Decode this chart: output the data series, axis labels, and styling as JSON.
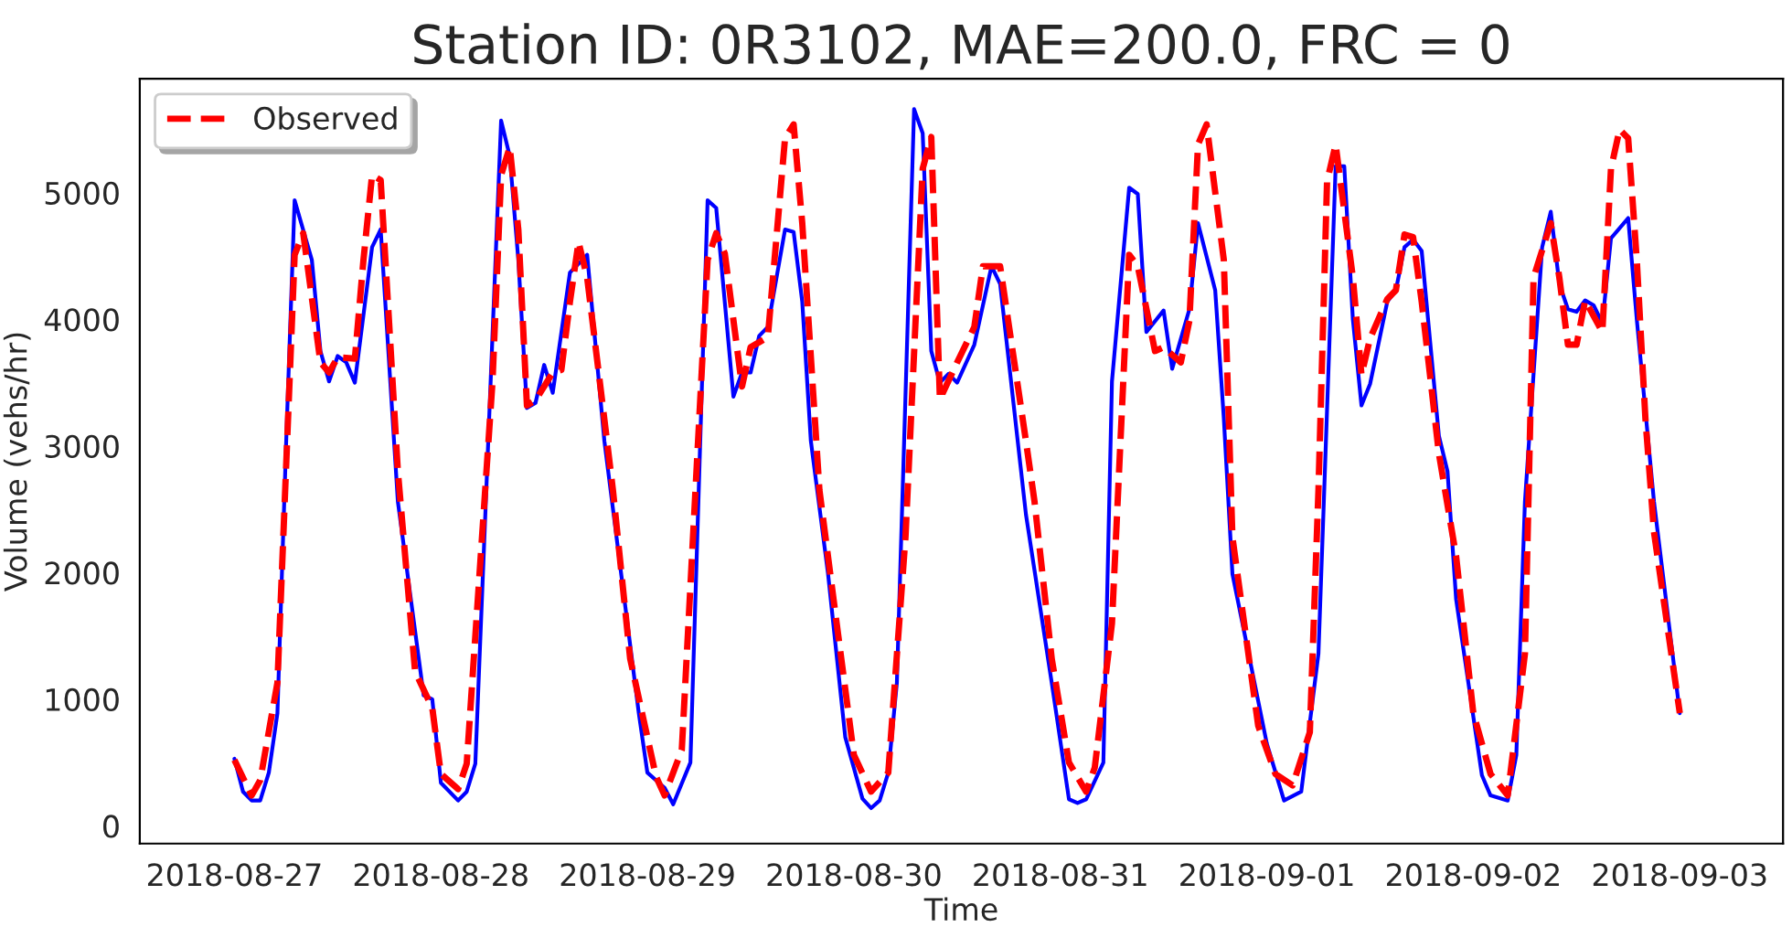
{
  "chart_data": {
    "type": "line",
    "title": "Station ID: 0R3102, MAE=200.0, FRC = 0",
    "xlabel": "Time",
    "ylabel": "Volume (vehs/hr)",
    "xlim": [
      "2018-08-26T13:00",
      "2018-09-03T12:00"
    ],
    "xticks": [
      "2018-08-27",
      "2018-08-28",
      "2018-08-29",
      "2018-08-30",
      "2018-08-31",
      "2018-09-01",
      "2018-09-02",
      "2018-09-03"
    ],
    "ylim": [
      -140,
      5900
    ],
    "yticks": [
      0,
      1000,
      2000,
      3000,
      4000,
      5000
    ],
    "grid": false,
    "legend": "top left",
    "marker": "none",
    "series": [
      {
        "color": "#0000ff",
        "line_style": "solid",
        "x": [
          "2018-08-27T00:00",
          "2018-08-27T01:00",
          "2018-08-27T02:00",
          "2018-08-27T03:00",
          "2018-08-27T04:00",
          "2018-08-27T05:00",
          "2018-08-27T06:00",
          "2018-08-27T07:00",
          "2018-08-27T09:00",
          "2018-08-27T10:00",
          "2018-08-27T11:00",
          "2018-08-27T12:00",
          "2018-08-27T13:00",
          "2018-08-27T14:00",
          "2018-08-27T16:00",
          "2018-08-27T17:00",
          "2018-08-27T19:00",
          "2018-08-27T22:00",
          "2018-08-27T23:00",
          "2018-08-28T00:00",
          "2018-08-28T02:00",
          "2018-08-28T03:00",
          "2018-08-28T04:00",
          "2018-08-28T07:00",
          "2018-08-28T08:00",
          "2018-08-28T09:00",
          "2018-08-28T10:00",
          "2018-08-28T11:00",
          "2018-08-28T12:00",
          "2018-08-28T13:00",
          "2018-08-28T15:00",
          "2018-08-28T17:00",
          "2018-08-28T19:00",
          "2018-08-28T23:00",
          "2018-08-29T00:00",
          "2018-08-29T02:00",
          "2018-08-29T03:00",
          "2018-08-29T05:00",
          "2018-08-29T07:00",
          "2018-08-29T08:00",
          "2018-08-29T10:00",
          "2018-08-29T11:00",
          "2018-08-29T12:00",
          "2018-08-29T13:00",
          "2018-08-29T14:00",
          "2018-08-29T16:00",
          "2018-08-29T17:00",
          "2018-08-29T18:00",
          "2018-08-29T19:00",
          "2018-08-29T21:00",
          "2018-08-29T23:00",
          "2018-08-30T01:00",
          "2018-08-30T02:00",
          "2018-08-30T03:00",
          "2018-08-30T04:00",
          "2018-08-30T05:00",
          "2018-08-30T07:00",
          "2018-08-30T08:00",
          "2018-08-30T09:00",
          "2018-08-30T10:00",
          "2018-08-30T11:00",
          "2018-08-30T12:00",
          "2018-08-30T14:00",
          "2018-08-30T16:00",
          "2018-08-30T17:00",
          "2018-08-30T20:00",
          "2018-08-30T23:00",
          "2018-08-31T01:00",
          "2018-08-31T02:00",
          "2018-08-31T03:00",
          "2018-08-31T05:00",
          "2018-08-31T06:00",
          "2018-08-31T08:00",
          "2018-08-31T09:00",
          "2018-08-31T10:00",
          "2018-08-31T12:00",
          "2018-08-31T13:00",
          "2018-08-31T15:00",
          "2018-08-31T16:00",
          "2018-08-31T18:00",
          "2018-08-31T19:00",
          "2018-08-31T20:00",
          "2018-09-01T00:00",
          "2018-09-01T02:00",
          "2018-09-01T04:00",
          "2018-09-01T06:00",
          "2018-09-01T08:00",
          "2018-09-01T09:00",
          "2018-09-01T10:00",
          "2018-09-01T11:00",
          "2018-09-01T12:00",
          "2018-09-01T14:00",
          "2018-09-01T15:00",
          "2018-09-01T16:00",
          "2018-09-01T17:00",
          "2018-09-01T18:00",
          "2018-09-01T20:00",
          "2018-09-01T21:00",
          "2018-09-01T22:00",
          "2018-09-02T01:00",
          "2018-09-02T02:00",
          "2018-09-02T04:00",
          "2018-09-02T05:00",
          "2018-09-02T06:00",
          "2018-09-02T08:00",
          "2018-09-02T09:00",
          "2018-09-02T10:00",
          "2018-09-02T11:00",
          "2018-09-02T12:00",
          "2018-09-02T13:00",
          "2018-09-02T14:00",
          "2018-09-02T15:00",
          "2018-09-02T16:00",
          "2018-09-02T18:00",
          "2018-09-02T19:00",
          "2018-09-02T21:00",
          "2018-09-03T00:00"
        ],
        "values": [
          530,
          270,
          200,
          200,
          420,
          890,
          3000,
          4940,
          4470,
          3750,
          3510,
          3710,
          3660,
          3500,
          4570,
          4710,
          2560,
          1030,
          1000,
          340,
          200,
          270,
          490,
          5570,
          5290,
          4470,
          3300,
          3340,
          3640,
          3420,
          4370,
          4510,
          3040,
          890,
          420,
          300,
          170,
          500,
          4940,
          4880,
          3390,
          3580,
          3580,
          3870,
          3940,
          4710,
          4690,
          4140,
          3040,
          1990,
          700,
          215,
          140,
          200,
          420,
          1130,
          5660,
          5470,
          3750,
          3500,
          3570,
          3500,
          3800,
          4420,
          4280,
          2460,
          1130,
          210,
          180,
          210,
          500,
          3510,
          5040,
          4990,
          3900,
          4070,
          3610,
          4080,
          4760,
          4230,
          3220,
          1990,
          650,
          200,
          270,
          1360,
          5210,
          5210,
          4000,
          3320,
          3490,
          4140,
          4230,
          4570,
          4630,
          4540,
          3080,
          2800,
          1790,
          400,
          240,
          200,
          560,
          2560,
          4570,
          4850,
          4280,
          4080,
          4060,
          4150,
          4110,
          3970,
          4640,
          4800,
          4000,
          2560,
          890
        ]
      },
      {
        "name": "Observed",
        "color": "#ff0000",
        "line_style": "dashed",
        "x": [
          "2018-08-27T00:00",
          "2018-08-27T02:00",
          "2018-08-27T03:00",
          "2018-08-27T05:00",
          "2018-08-27T07:00",
          "2018-08-27T08:00",
          "2018-08-27T10:00",
          "2018-08-27T11:00",
          "2018-08-27T12:00",
          "2018-08-27T14:00",
          "2018-08-27T15:00",
          "2018-08-27T16:00",
          "2018-08-27T17:00",
          "2018-08-27T19:00",
          "2018-08-27T21:00",
          "2018-08-27T23:00",
          "2018-08-28T00:00",
          "2018-08-28T02:00",
          "2018-08-28T03:00",
          "2018-08-28T06:00",
          "2018-08-28T07:00",
          "2018-08-28T08:00",
          "2018-08-28T09:00",
          "2018-08-28T10:00",
          "2018-08-28T11:00",
          "2018-08-28T13:00",
          "2018-08-28T14:00",
          "2018-08-28T15:00",
          "2018-08-28T16:00",
          "2018-08-28T17:00",
          "2018-08-28T20:00",
          "2018-08-28T22:00",
          "2018-08-29T01:00",
          "2018-08-29T02:00",
          "2018-08-29T04:00",
          "2018-08-29T07:00",
          "2018-08-29T08:00",
          "2018-08-29T09:00",
          "2018-08-29T11:00",
          "2018-08-29T12:00",
          "2018-08-29T14:00",
          "2018-08-29T16:00",
          "2018-08-29T17:00",
          "2018-08-29T18:00",
          "2018-08-29T20:00",
          "2018-08-29T22:00",
          "2018-08-30T00:00",
          "2018-08-30T02:00",
          "2018-08-30T04:00",
          "2018-08-30T06:00",
          "2018-08-30T08:00",
          "2018-08-30T09:00",
          "2018-08-30T10:00",
          "2018-08-30T12:00",
          "2018-08-30T14:00",
          "2018-08-30T15:00",
          "2018-08-30T17:00",
          "2018-08-30T20:00",
          "2018-08-30T21:00",
          "2018-08-30T23:00",
          "2018-08-31T01:00",
          "2018-08-31T03:00",
          "2018-08-31T04:00",
          "2018-08-31T06:00",
          "2018-08-31T08:00",
          "2018-08-31T09:00",
          "2018-08-31T11:00",
          "2018-08-31T12:00",
          "2018-08-31T14:00",
          "2018-08-31T15:00",
          "2018-08-31T16:00",
          "2018-08-31T17:00",
          "2018-08-31T19:00",
          "2018-08-31T20:00",
          "2018-08-31T23:00",
          "2018-09-01T01:00",
          "2018-09-01T03:00",
          "2018-09-01T05:00",
          "2018-09-01T06:00",
          "2018-09-01T07:00",
          "2018-09-01T08:00",
          "2018-09-01T10:00",
          "2018-09-01T11:00",
          "2018-09-01T12:00",
          "2018-09-01T14:00",
          "2018-09-01T15:00",
          "2018-09-01T16:00",
          "2018-09-01T17:00",
          "2018-09-01T18:00",
          "2018-09-01T20:00",
          "2018-09-01T22:00",
          "2018-09-02T00:00",
          "2018-09-02T02:00",
          "2018-09-02T04:00",
          "2018-09-02T06:00",
          "2018-09-02T07:00",
          "2018-09-02T09:00",
          "2018-09-02T10:00",
          "2018-09-02T11:00",
          "2018-09-02T12:00",
          "2018-09-02T13:00",
          "2018-09-02T15:00",
          "2018-09-02T16:00",
          "2018-09-02T17:00",
          "2018-09-02T18:00",
          "2018-09-02T19:00",
          "2018-09-02T20:00",
          "2018-09-02T21:00",
          "2018-09-03T00:00"
        ],
        "values": [
          520,
          240,
          360,
          1130,
          4510,
          4680,
          3660,
          3580,
          3700,
          3690,
          4470,
          5140,
          5100,
          2800,
          1220,
          930,
          410,
          290,
          490,
          3510,
          5140,
          5360,
          4710,
          3320,
          3360,
          3580,
          3600,
          4140,
          4610,
          4330,
          2650,
          1320,
          390,
          240,
          600,
          4470,
          4680,
          4520,
          3470,
          3780,
          3860,
          5430,
          5540,
          4760,
          2650,
          1600,
          560,
          270,
          420,
          2280,
          5190,
          5440,
          3370,
          3660,
          3940,
          4420,
          4420,
          3040,
          2560,
          1320,
          500,
          270,
          460,
          1600,
          4510,
          4420,
          3750,
          3780,
          3660,
          3990,
          5380,
          5540,
          4470,
          2280,
          790,
          410,
          320,
          740,
          2650,
          5090,
          5380,
          4330,
          3560,
          3850,
          4160,
          4230,
          4670,
          4650,
          4140,
          2940,
          2130,
          890,
          410,
          240,
          1360,
          4330,
          4760,
          4330,
          3800,
          3800,
          4150,
          3900,
          5190,
          5500,
          5430,
          4470,
          3220,
          2320,
          890
        ]
      }
    ]
  }
}
